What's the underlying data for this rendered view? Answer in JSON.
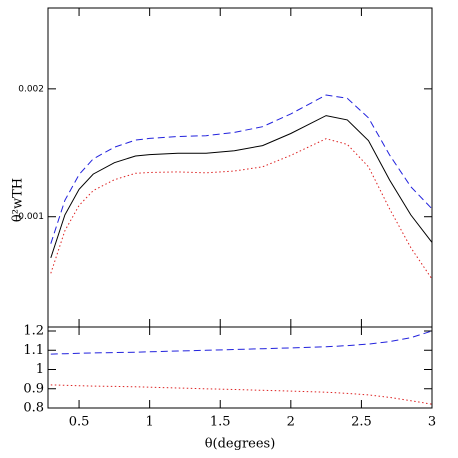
{
  "chart_data": [
    {
      "type": "line",
      "ylabel": "θ²wTH",
      "ylog": true,
      "x": [
        0.3,
        0.4,
        0.5,
        0.6,
        0.75,
        0.9,
        1.0,
        1.2,
        1.4,
        1.6,
        1.8,
        2.0,
        2.25,
        2.4,
        2.55,
        2.7,
        2.85,
        3.0
      ],
      "xlim": [
        0.28,
        3.0
      ],
      "ylim": [
        0.00055,
        0.0031
      ],
      "yticks": [
        0.001,
        0.002
      ],
      "series": [
        {
          "color": "#000000",
          "dash": "solid",
          "values": [
            0.0008,
            0.00101,
            0.00116,
            0.00126,
            0.00134,
            0.00139,
            0.0014,
            0.00141,
            0.00141,
            0.00143,
            0.00147,
            0.00157,
            0.00173,
            0.00169,
            0.00151,
            0.00122,
            0.00101,
            0.00087
          ]
        },
        {
          "color": "#2222dd",
          "dash": "dashed",
          "values": [
            0.000864,
            0.001093,
            0.001257,
            0.001368,
            0.001458,
            0.001515,
            0.001529,
            0.001545,
            0.001551,
            0.001579,
            0.001629,
            0.001746,
            0.001934,
            0.0019,
            0.001709,
            0.001397,
            0.001177,
            0.001044
          ]
        },
        {
          "color": "#dd2222",
          "dash": "dotted",
          "values": [
            0.000736,
            0.000927,
            0.001063,
            0.001152,
            0.001222,
            0.001265,
            0.001271,
            0.001275,
            0.001269,
            0.001281,
            0.001311,
            0.001394,
            0.001526,
            0.00148,
            0.001311,
            0.001043,
            0.000846,
            0.000713
          ]
        }
      ]
    },
    {
      "type": "line",
      "xlabel": "θ(degrees)",
      "x": [
        0.3,
        0.4,
        0.5,
        0.6,
        0.75,
        0.9,
        1.0,
        1.2,
        1.4,
        1.6,
        1.8,
        2.0,
        2.25,
        2.4,
        2.55,
        2.7,
        2.85,
        3.0
      ],
      "xlim": [
        0.28,
        3.0
      ],
      "xticks": [
        0.5,
        1,
        1.5,
        2,
        2.5,
        3
      ],
      "ylim": [
        0.8,
        1.2
      ],
      "yticks": [
        0.8,
        0.9,
        1,
        1.1,
        1.2
      ],
      "series": [
        {
          "color": "#2222dd",
          "dash": "dashed",
          "values": [
            1.08,
            1.082,
            1.084,
            1.086,
            1.088,
            1.09,
            1.092,
            1.096,
            1.1,
            1.104,
            1.108,
            1.112,
            1.118,
            1.124,
            1.132,
            1.145,
            1.165,
            1.2
          ]
        },
        {
          "color": "#dd2222",
          "dash": "dotted",
          "values": [
            0.92,
            0.918,
            0.916,
            0.914,
            0.912,
            0.91,
            0.908,
            0.904,
            0.9,
            0.896,
            0.892,
            0.888,
            0.882,
            0.876,
            0.868,
            0.855,
            0.838,
            0.82
          ]
        }
      ]
    }
  ]
}
